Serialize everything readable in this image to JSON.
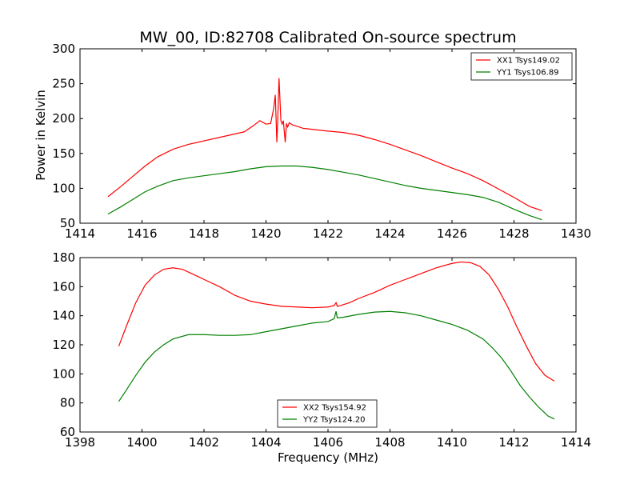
{
  "figure": {
    "title": "MW_00, ID:82708 Calibrated On-source spectrum"
  },
  "chart_data": [
    {
      "type": "line",
      "title": "MW_00, ID:82708 Calibrated On-source spectrum",
      "xlabel": "",
      "ylabel": "Power in Kelvin",
      "xlim": [
        1414,
        1430
      ],
      "ylim": [
        50,
        300
      ],
      "xticks": [
        1414,
        1416,
        1418,
        1420,
        1422,
        1424,
        1426,
        1428,
        1430
      ],
      "yticks": [
        50,
        100,
        150,
        200,
        250,
        300
      ],
      "grid": false,
      "legend_position": "top-right",
      "series": [
        {
          "name": "XX1 Tsys149.02",
          "color": "#ff0000",
          "x": [
            1414.9,
            1415.3,
            1415.7,
            1416.1,
            1416.5,
            1417.0,
            1417.5,
            1418.0,
            1418.5,
            1419.0,
            1419.3,
            1419.6,
            1419.8,
            1420.0,
            1420.15,
            1420.25,
            1420.3,
            1420.35,
            1420.38,
            1420.42,
            1420.45,
            1420.48,
            1420.52,
            1420.56,
            1420.62,
            1420.66,
            1420.7,
            1420.75,
            1420.85,
            1421.0,
            1421.2,
            1421.6,
            1422.0,
            1422.5,
            1423.0,
            1423.5,
            1424.0,
            1424.5,
            1425.0,
            1425.5,
            1426.0,
            1426.5,
            1427.0,
            1427.5,
            1428.0,
            1428.5,
            1428.9
          ],
          "y": [
            88,
            102,
            117,
            132,
            145,
            156,
            163,
            168,
            173,
            178,
            181,
            190,
            197,
            192,
            193,
            215,
            234,
            166,
            200,
            258,
            228,
            197,
            192,
            197,
            166,
            193,
            188,
            194,
            191,
            189,
            186,
            184,
            182,
            180,
            176,
            170,
            163,
            155,
            147,
            138,
            129,
            121,
            111,
            99,
            87,
            74,
            68
          ]
        },
        {
          "name": "YY1 Tsys106.89",
          "color": "#008000",
          "x": [
            1414.9,
            1415.3,
            1415.7,
            1416.1,
            1416.5,
            1417.0,
            1417.5,
            1418.0,
            1418.5,
            1419.0,
            1419.5,
            1420.0,
            1420.5,
            1421.0,
            1421.5,
            1422.0,
            1422.5,
            1423.0,
            1423.5,
            1424.0,
            1424.5,
            1425.0,
            1425.5,
            1426.0,
            1426.5,
            1427.0,
            1427.5,
            1428.0,
            1428.5,
            1428.9
          ],
          "y": [
            63,
            73,
            84,
            95,
            103,
            111,
            115,
            118,
            121,
            124,
            128,
            131,
            132,
            132,
            130,
            127,
            123,
            119,
            114,
            109,
            104,
            100,
            97,
            94,
            91,
            87,
            80,
            70,
            61,
            55
          ]
        }
      ]
    },
    {
      "type": "line",
      "title": "",
      "xlabel": "Frequency (MHz)",
      "ylabel": "",
      "xlim": [
        1398,
        1414
      ],
      "ylim": [
        60,
        180
      ],
      "xticks": [
        1398,
        1400,
        1402,
        1404,
        1406,
        1408,
        1410,
        1412,
        1414
      ],
      "yticks": [
        60,
        80,
        100,
        120,
        140,
        160,
        180
      ],
      "grid": false,
      "legend_position": "bottom-center",
      "series": [
        {
          "name": "XX2 Tsys154.92",
          "color": "#ff0000",
          "x": [
            1399.25,
            1399.5,
            1399.8,
            1400.1,
            1400.4,
            1400.7,
            1401.0,
            1401.3,
            1401.6,
            1402.0,
            1402.5,
            1403.0,
            1403.5,
            1404.0,
            1404.5,
            1405.0,
            1405.5,
            1406.0,
            1406.2,
            1406.26,
            1406.3,
            1406.4,
            1406.7,
            1407.0,
            1407.5,
            1408.0,
            1408.5,
            1409.0,
            1409.5,
            1410.0,
            1410.3,
            1410.6,
            1410.9,
            1411.2,
            1411.5,
            1411.8,
            1412.1,
            1412.4,
            1412.7,
            1413.0,
            1413.3
          ],
          "y": [
            119,
            133,
            149,
            161,
            168,
            172,
            173,
            172,
            169,
            165,
            160,
            154,
            150,
            148,
            146.5,
            146,
            145.5,
            146,
            147,
            149,
            146.5,
            147,
            149,
            152,
            156,
            161,
            165,
            169,
            173,
            176,
            177,
            176.5,
            174,
            168,
            158,
            146,
            132,
            119,
            107,
            99,
            95
          ]
        },
        {
          "name": "YY2 Tsys124.20",
          "color": "#008000",
          "x": [
            1399.25,
            1399.5,
            1399.8,
            1400.1,
            1400.4,
            1400.7,
            1401.0,
            1401.5,
            1402.0,
            1402.5,
            1403.0,
            1403.5,
            1404.0,
            1404.5,
            1405.0,
            1405.5,
            1406.0,
            1406.2,
            1406.26,
            1406.3,
            1406.5,
            1407.0,
            1407.5,
            1408.0,
            1408.5,
            1409.0,
            1409.5,
            1410.0,
            1410.5,
            1411.0,
            1411.3,
            1411.6,
            1411.9,
            1412.2,
            1412.5,
            1412.8,
            1413.1,
            1413.3
          ],
          "y": [
            81,
            89,
            99,
            108,
            115,
            120,
            124,
            127,
            127,
            126.5,
            126.5,
            127,
            129,
            131,
            133,
            135,
            136,
            138,
            143,
            138.5,
            139,
            141,
            142.5,
            143,
            142,
            140,
            137,
            134,
            130,
            124,
            118,
            111,
            102,
            92,
            84,
            77,
            71,
            69
          ]
        }
      ]
    }
  ]
}
